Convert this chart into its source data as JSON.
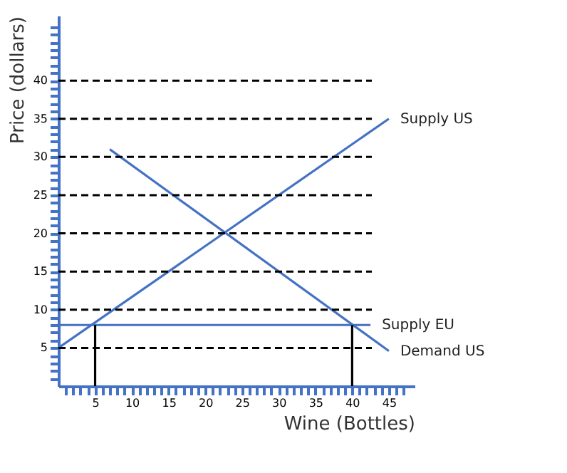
{
  "chart_data": {
    "type": "line",
    "xlabel": "Wine (Bottles)",
    "ylabel": "Price (dollars)",
    "xlim": [
      0,
      48.5
    ],
    "ylim": [
      0,
      48.5
    ],
    "xticks": [
      {
        "value": 1,
        "label": null
      },
      {
        "value": 2,
        "label": null
      },
      {
        "value": 3,
        "label": null
      },
      {
        "value": 4,
        "label": null
      },
      5,
      {
        "value": 6,
        "label": null
      },
      {
        "value": 7,
        "label": null
      },
      {
        "value": 8,
        "label": null
      },
      {
        "value": 9,
        "label": null
      },
      10,
      {
        "value": 11,
        "label": null
      },
      {
        "value": 12,
        "label": null
      },
      {
        "value": 13,
        "label": null
      },
      {
        "value": 14,
        "label": null
      },
      15,
      {
        "value": 16,
        "label": null
      },
      {
        "value": 17,
        "label": null
      },
      {
        "value": 18,
        "label": null
      },
      {
        "value": 19,
        "label": null
      },
      20,
      {
        "value": 21,
        "label": null
      },
      {
        "value": 22,
        "label": null
      },
      {
        "value": 23,
        "label": null
      },
      {
        "value": 24,
        "label": null
      },
      25,
      {
        "value": 26,
        "label": null
      },
      {
        "value": 27,
        "label": null
      },
      {
        "value": 28,
        "label": null
      },
      {
        "value": 29,
        "label": null
      },
      30,
      {
        "value": 31,
        "label": null
      },
      {
        "value": 32,
        "label": null
      },
      {
        "value": 33,
        "label": null
      },
      {
        "value": 34,
        "label": null
      },
      35,
      {
        "value": 36,
        "label": null
      },
      {
        "value": 37,
        "label": null
      },
      {
        "value": 38,
        "label": null
      },
      {
        "value": 39,
        "label": null
      },
      40,
      {
        "value": 41,
        "label": null
      },
      {
        "value": 42,
        "label": null
      },
      {
        "value": 43,
        "label": null
      },
      {
        "value": 44,
        "label": null
      },
      45,
      {
        "value": 46,
        "label": null
      },
      {
        "value": 47,
        "label": null
      }
    ],
    "yticks": [
      {
        "value": 1,
        "label": null
      },
      {
        "value": 2,
        "label": null
      },
      {
        "value": 3,
        "label": null
      },
      {
        "value": 4,
        "label": null
      },
      5,
      {
        "value": 6,
        "label": null
      },
      {
        "value": 7,
        "label": null
      },
      {
        "value": 8,
        "label": null
      },
      {
        "value": 9,
        "label": null
      },
      10,
      {
        "value": 11,
        "label": null
      },
      {
        "value": 12,
        "label": null
      },
      {
        "value": 13,
        "label": null
      },
      {
        "value": 14,
        "label": null
      },
      15,
      {
        "value": 16,
        "label": null
      },
      {
        "value": 17,
        "label": null
      },
      {
        "value": 18,
        "label": null
      },
      {
        "value": 19,
        "label": null
      },
      20,
      {
        "value": 21,
        "label": null
      },
      {
        "value": 22,
        "label": null
      },
      {
        "value": 23,
        "label": null
      },
      {
        "value": 24,
        "label": null
      },
      25,
      {
        "value": 26,
        "label": null
      },
      {
        "value": 27,
        "label": null
      },
      {
        "value": 28,
        "label": null
      },
      {
        "value": 29,
        "label": null
      },
      30,
      {
        "value": 31,
        "label": null
      },
      {
        "value": 32,
        "label": null
      },
      {
        "value": 33,
        "label": null
      },
      {
        "value": 34,
        "label": null
      },
      35,
      {
        "value": 36,
        "label": null
      },
      {
        "value": 37,
        "label": null
      },
      {
        "value": 38,
        "label": null
      },
      {
        "value": 39,
        "label": null
      },
      40,
      {
        "value": 41,
        "label": null
      },
      {
        "value": 42,
        "label": null
      },
      {
        "value": 43,
        "label": null
      },
      {
        "value": 44,
        "label": null
      },
      {
        "value": 45,
        "label": null
      },
      {
        "value": 46,
        "label": null
      },
      {
        "value": 47,
        "label": null
      }
    ],
    "ref_lines": [
      {
        "axis": "y",
        "value": 5,
        "color": "#000000",
        "line_style": "dashed"
      },
      {
        "axis": "y",
        "value": 10,
        "color": "#000000",
        "line_style": "dashed"
      },
      {
        "axis": "y",
        "value": 15,
        "color": "#000000",
        "line_style": "dashed"
      },
      {
        "axis": "y",
        "value": 20,
        "color": "#000000",
        "line_style": "dashed"
      },
      {
        "axis": "y",
        "value": 25,
        "color": "#000000",
        "line_style": "dashed"
      },
      {
        "axis": "y",
        "value": 30,
        "color": "#000000",
        "line_style": "dashed"
      },
      {
        "axis": "y",
        "value": 35,
        "color": "#000000",
        "line_style": "dashed"
      },
      {
        "axis": "y",
        "value": 40,
        "color": "#000000",
        "line_style": "dashed"
      }
    ],
    "series": [
      {
        "name": "Supply US",
        "color": "#4472c4",
        "x": [
          0,
          45
        ],
        "values": [
          5,
          35
        ]
      },
      {
        "name": "Demand US",
        "color": "#4472c4",
        "x": [
          7,
          45
        ],
        "values": [
          31,
          4.6
        ]
      },
      {
        "name": "Supply EU",
        "color": "#4472c4",
        "x": [
          0,
          42.5
        ],
        "values": [
          8,
          8
        ]
      },
      {
        "color": "#000000",
        "x": [
          5,
          5
        ],
        "values": [
          0,
          8
        ]
      },
      {
        "color": "#000000",
        "x": [
          40,
          40
        ],
        "values": [
          0,
          8
        ]
      }
    ],
    "legend": false,
    "grid": false,
    "line_style": "solid"
  }
}
